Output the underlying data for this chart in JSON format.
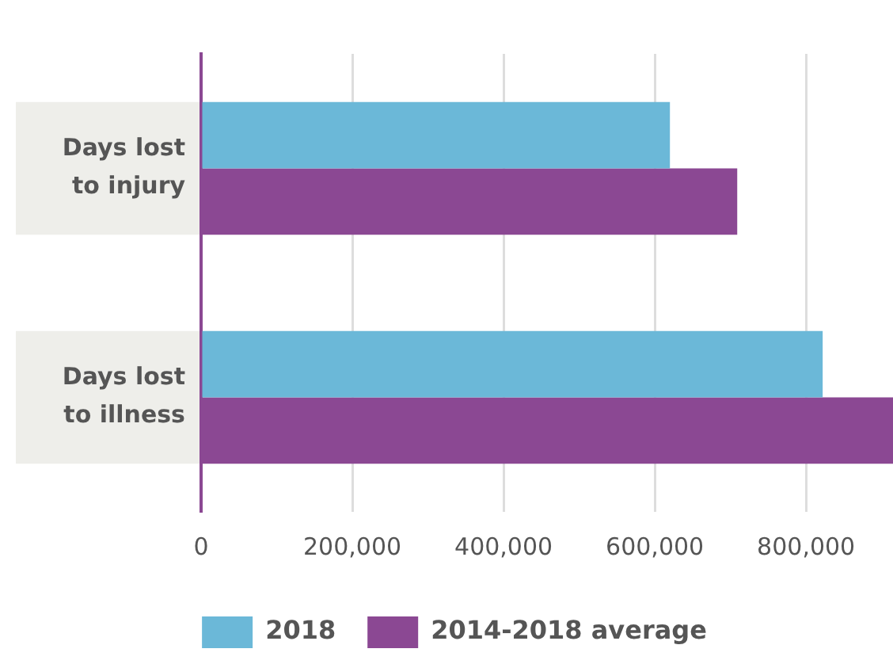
{
  "chart_data": {
    "type": "bar",
    "orientation": "horizontal",
    "categories": [
      "Days lost to injury",
      "Days lost to illness"
    ],
    "series": [
      {
        "name": "2018",
        "color": "#6bb8d8",
        "values": [
          620000,
          822000
        ]
      },
      {
        "name": "2014-2018 average",
        "color": "#8b4893",
        "values": [
          709000,
          915000
        ]
      }
    ],
    "xlim": [
      0,
      915000
    ],
    "xticks": [
      0,
      {
        "value": 200000,
        "label": "200,000"
      },
      {
        "value": 400000,
        "label": "400,000"
      },
      {
        "value": 600000,
        "label": "600,000"
      },
      {
        "value": 800000,
        "label": "800,000"
      }
    ],
    "grid": "x",
    "legend": "bottom"
  }
}
